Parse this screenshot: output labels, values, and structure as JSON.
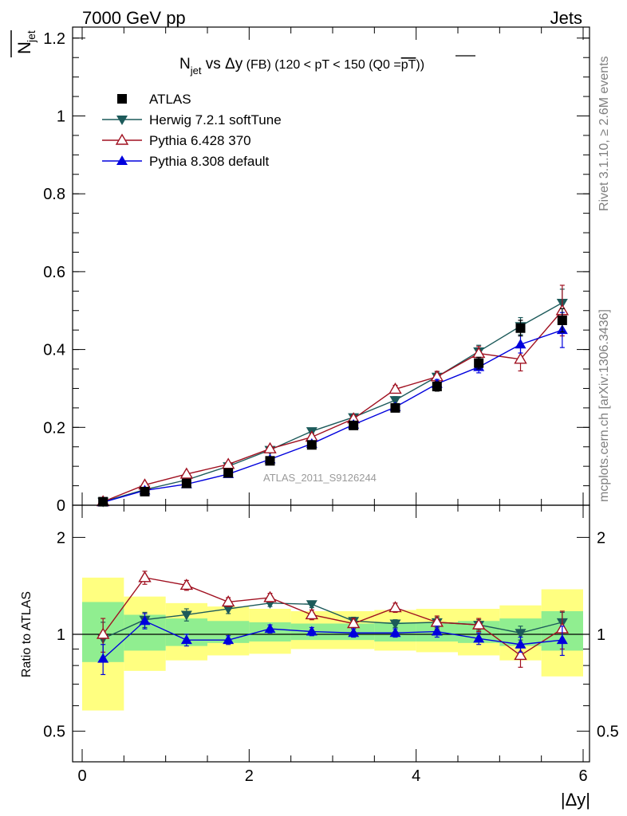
{
  "header": {
    "left": "7000 GeV pp",
    "right": "Jets"
  },
  "side": {
    "rivet": "Rivet 3.1.10, ≥ 2.6M events",
    "mcplots": "mcplots.cern.ch [arXiv:1306.3436]"
  },
  "chart_data": [
    {
      "type": "line",
      "title": {
        "main": "N",
        "main_sub": "jet",
        "vs": " vs Δy",
        "rest": " (FB) (120 < pT < 150 (Q0 =",
        "overline": "pT",
        "close": "))"
      },
      "ylabel": {
        "main": "N",
        "sub": "jet"
      },
      "watermark": "ATLAS_2011_S9126244",
      "xlim": [
        0,
        6
      ],
      "ylim": [
        0,
        1.22
      ],
      "yticks": [
        "0",
        "0.2",
        "0.4",
        "0.6",
        "0.8",
        "1",
        "1.2"
      ],
      "x": [
        0.25,
        0.75,
        1.25,
        1.75,
        2.25,
        2.75,
        3.25,
        3.75,
        4.25,
        4.75,
        5.25,
        5.75
      ],
      "series": [
        {
          "name": "ATLAS",
          "color": "#000000",
          "marker": "square",
          "values": [
            0.009,
            0.035,
            0.056,
            0.083,
            0.114,
            0.155,
            0.205,
            0.25,
            0.305,
            0.365,
            0.455,
            0.475
          ],
          "errors": [
            0.002,
            0.003,
            0.004,
            0.005,
            0.006,
            0.007,
            0.008,
            0.01,
            0.012,
            0.015,
            0.02,
            0.03
          ]
        },
        {
          "name": "Herwig 7.2.1 softTune",
          "color": "#1c5a5a",
          "marker": "triangle-down",
          "values": [
            0.009,
            0.04,
            0.065,
            0.1,
            0.142,
            0.19,
            0.226,
            0.27,
            0.33,
            0.395,
            0.46,
            0.52
          ],
          "errors": [
            0.001,
            0.002,
            0.003,
            0.004,
            0.005,
            0.006,
            0.007,
            0.009,
            0.012,
            0.016,
            0.022,
            0.035
          ]
        },
        {
          "name": "Pythia 6.428 370",
          "color": "#a01020",
          "marker": "triangle-open",
          "values": [
            0.009,
            0.052,
            0.08,
            0.105,
            0.145,
            0.175,
            0.222,
            0.298,
            0.33,
            0.39,
            0.375,
            0.5
          ],
          "errors": [
            0.002,
            0.003,
            0.004,
            0.005,
            0.006,
            0.007,
            0.008,
            0.01,
            0.014,
            0.018,
            0.03,
            0.065
          ]
        },
        {
          "name": "Pythia 8.308 default",
          "color": "#0000dd",
          "marker": "triangle-up",
          "values": [
            0.0075,
            0.038,
            0.054,
            0.08,
            0.118,
            0.158,
            0.207,
            0.252,
            0.312,
            0.355,
            0.413,
            0.45
          ],
          "errors": [
            0.001,
            0.002,
            0.003,
            0.004,
            0.005,
            0.006,
            0.007,
            0.009,
            0.011,
            0.015,
            0.022,
            0.045
          ]
        }
      ]
    },
    {
      "type": "line",
      "ylabel": "Ratio to ATLAS",
      "xlabel": "|Δy|",
      "xlim": [
        0,
        6
      ],
      "ylim": [
        0.35,
        2.27
      ],
      "xticks": [
        "0",
        "2",
        "4",
        "6"
      ],
      "yticks": [
        "0.5",
        "1",
        "2"
      ],
      "bands": {
        "yellow": {
          "color": "#ffff80",
          "lo": [
            0.58,
            0.77,
            0.83,
            0.86,
            0.87,
            0.9,
            0.9,
            0.89,
            0.88,
            0.86,
            0.83,
            0.74
          ],
          "hi": [
            1.5,
            1.31,
            1.25,
            1.22,
            1.2,
            1.18,
            1.18,
            1.19,
            1.2,
            1.2,
            1.23,
            1.38
          ]
        },
        "green": {
          "color": "#90ee90",
          "lo": [
            0.82,
            0.89,
            0.92,
            0.94,
            0.95,
            0.96,
            0.96,
            0.95,
            0.95,
            0.94,
            0.92,
            0.89
          ],
          "hi": [
            1.26,
            1.15,
            1.12,
            1.1,
            1.09,
            1.08,
            1.08,
            1.09,
            1.09,
            1.1,
            1.12,
            1.18
          ]
        }
      },
      "series": [
        {
          "name": "Herwig 7.2.1 softTune",
          "color": "#1c5a5a",
          "marker": "triangle-down",
          "values": [
            0.97,
            1.11,
            1.15,
            1.2,
            1.25,
            1.24,
            1.1,
            1.08,
            1.09,
            1.07,
            1.01,
            1.09
          ],
          "errors": [
            0.12,
            0.06,
            0.05,
            0.04,
            0.03,
            0.03,
            0.03,
            0.03,
            0.04,
            0.04,
            0.05,
            0.08
          ]
        },
        {
          "name": "Pythia 6.428 370",
          "color": "#a01020",
          "marker": "triangle-open",
          "values": [
            1.0,
            1.5,
            1.42,
            1.26,
            1.3,
            1.15,
            1.08,
            1.21,
            1.09,
            1.07,
            0.86,
            1.04
          ],
          "errors": [
            0.12,
            0.07,
            0.05,
            0.04,
            0.04,
            0.04,
            0.04,
            0.04,
            0.05,
            0.05,
            0.07,
            0.14
          ]
        },
        {
          "name": "Pythia 8.308 default",
          "color": "#0000dd",
          "marker": "triangle-up",
          "values": [
            0.84,
            1.1,
            0.96,
            0.96,
            1.04,
            1.02,
            1.01,
            1.01,
            1.02,
            0.97,
            0.93,
            0.96
          ],
          "errors": [
            0.09,
            0.06,
            0.04,
            0.03,
            0.03,
            0.03,
            0.03,
            0.03,
            0.04,
            0.04,
            0.05,
            0.1
          ]
        }
      ]
    }
  ]
}
